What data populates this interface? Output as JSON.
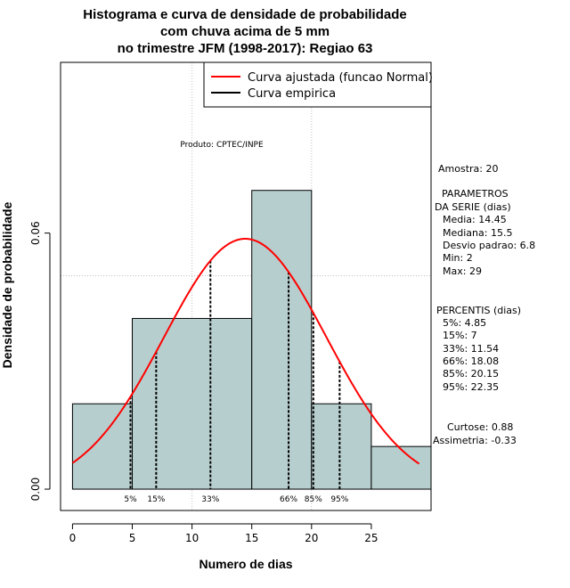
{
  "chart_data": {
    "type": "bar",
    "title": [
      "Histograma e curva de densidade de probabilidade",
      "com chuva acima de 5 mm",
      "no trimestre JFM (1998-2017): Regiao 63"
    ],
    "xlabel": "Numero de dias",
    "ylabel": "Densidade de probabilidade",
    "xlim": [
      -1,
      30
    ],
    "ylim": [
      -0.005,
      0.1
    ],
    "xticks": [
      0,
      5,
      10,
      15,
      20,
      25
    ],
    "xtick_labels": [
      "0",
      "5",
      "10",
      "15",
      "20",
      "25"
    ],
    "yticks": [
      0.0,
      0.06
    ],
    "ytick_labels": [
      "0.00",
      "0.06"
    ],
    "grid": true,
    "grid_x": [
      10,
      20
    ],
    "grid_y": [
      0.05,
      0.1
    ],
    "bar_color": "#b7cece",
    "curve_color": "#ff0000",
    "bins": [
      {
        "x0": 0,
        "x1": 5,
        "density": 0.02
      },
      {
        "x0": 5,
        "x1": 15,
        "density": 0.04
      },
      {
        "x0": 15,
        "x1": 20,
        "density": 0.07
      },
      {
        "x0": 20,
        "x1": 25,
        "density": 0.02
      },
      {
        "x0": 25,
        "x1": 30,
        "density": 0.01
      }
    ],
    "normal_fit": {
      "mean": 14.45,
      "sd": 6.8,
      "x_from": 0,
      "x_to": 29
    },
    "percentile_lines": [
      {
        "label": "5%",
        "value": 4.85
      },
      {
        "label": "15%",
        "value": 7
      },
      {
        "label": "33%",
        "value": 11.54
      },
      {
        "label": "66%",
        "value": 18.08
      },
      {
        "label": "85%",
        "value": 20.15
      },
      {
        "label": "95%",
        "value": 22.35
      }
    ],
    "legend": {
      "position": "top-right",
      "entries": [
        {
          "label": "Curva ajustada (funcao Normal)",
          "color": "#ff0000"
        },
        {
          "label": "Curva empirica",
          "color": "#000000"
        }
      ]
    },
    "credit": "Produto: CPTEC/INPE"
  },
  "stats": {
    "sample": "Amostra: 20",
    "params_title": [
      "PARAMETROS",
      "DA SERIE (dias)"
    ],
    "params": [
      "Media: 14.45",
      "Mediana: 15.5",
      "Desvio padrao: 6.8",
      "Min: 2",
      "Max: 29"
    ],
    "percentiles_title": "PERCENTIS (dias)",
    "percentiles": [
      "5%: 4.85",
      "15%: 7",
      "33%: 11.54",
      "66%: 18.08",
      "85%: 20.15",
      "95%: 22.35"
    ],
    "kurtosis": "Curtose: 0.88",
    "skewness": "Assimetria: -0.33"
  }
}
